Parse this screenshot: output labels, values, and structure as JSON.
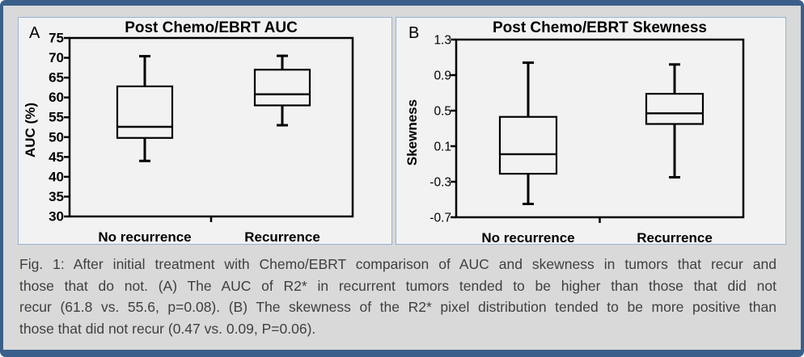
{
  "figure": {
    "caption_lines": [
      "Fig. 1:  After initial treatment with Chemo/EBRT comparison of AUC and skewness in tumors that recur and",
      "those that do not.  (A) The AUC of R2* in recurrent tumors tended to be higher than those that did not",
      "recur (61.8 vs. 55.6, p=0.08). (B) The skewness of the R2* pixel distribution tended to be more positive than",
      "those that did not recur (0.47 vs. 0.09, P=0.06)."
    ]
  },
  "colors": {
    "frame_blue": "#3A5F8B",
    "background_gray": "#D9D9D9",
    "panel_background": "#F2F2F2",
    "panel_border": "#95B3D7",
    "ink": "#000000",
    "caption_text": "#3F3F3F"
  },
  "panels": [
    {
      "label": "A"
    },
    {
      "label": "B"
    }
  ],
  "chart_data": [
    {
      "type": "boxplot",
      "panel": "A",
      "title": "Post Chemo/EBRT AUC",
      "ylabel": "AUC (%)",
      "xlabel": "",
      "categories": [
        "No recurrence",
        "Recurrence"
      ],
      "ylim": [
        30,
        75
      ],
      "yticks": [
        "75",
        "70",
        "65",
        "60",
        "55",
        "50",
        "45",
        "40",
        "35",
        "30"
      ],
      "grid": false,
      "legend": "none",
      "series": [
        {
          "category": "No recurrence",
          "whisker_low": 44.0,
          "q1": 49.8,
          "median": 52.6,
          "q3": 62.8,
          "whisker_high": 70.4
        },
        {
          "category": "Recurrence",
          "whisker_low": 53.0,
          "q1": 58.0,
          "median": 60.8,
          "q3": 67.0,
          "whisker_high": 70.5
        }
      ]
    },
    {
      "type": "boxplot",
      "panel": "B",
      "title": "Post Chemo/EBRT Skewness",
      "ylabel": "Skewness",
      "xlabel": "",
      "categories": [
        "No recurrence",
        "Recurrence"
      ],
      "ylim": [
        -0.7,
        1.3
      ],
      "yticks": [
        "1.3",
        "0.9",
        "0.5",
        "0.1",
        "-0.3",
        "-0.7"
      ],
      "grid": false,
      "legend": "none",
      "series": [
        {
          "category": "No recurrence",
          "whisker_low": -0.55,
          "q1": -0.21,
          "median": 0.01,
          "q3": 0.43,
          "whisker_high": 1.04
        },
        {
          "category": "Recurrence",
          "whisker_low": -0.25,
          "q1": 0.35,
          "median": 0.47,
          "q3": 0.69,
          "whisker_high": 1.02
        }
      ]
    }
  ]
}
